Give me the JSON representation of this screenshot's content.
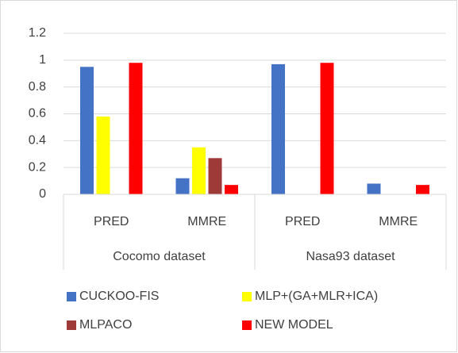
{
  "chart_data": {
    "type": "bar",
    "categories": [
      "PRED",
      "MMRE",
      "PRED",
      "MMRE"
    ],
    "groups": [
      {
        "name": "Cocomo dataset",
        "span": 2
      },
      {
        "name": "Nasa93 dataset",
        "span": 2
      }
    ],
    "series": [
      {
        "name": "CUCKOO-FIS",
        "color": "#4472c4",
        "values": [
          0.95,
          0.12,
          0.97,
          0.08
        ]
      },
      {
        "name": "MLP+(GA+MLR+ICA)",
        "color": "#ffff00",
        "values": [
          0.58,
          0.35,
          null,
          null
        ]
      },
      {
        "name": "MLPACO",
        "color": "#9e3a38",
        "values": [
          null,
          0.27,
          null,
          null
        ]
      },
      {
        "name": "NEW MODEL",
        "color": "#ff0000",
        "values": [
          0.98,
          0.07,
          0.98,
          0.07
        ]
      }
    ],
    "ylim": [
      0,
      1.2
    ],
    "yticks": [
      0,
      0.2,
      0.4,
      0.6,
      0.8,
      1,
      1.2
    ],
    "grid": true,
    "legend": "bottom"
  }
}
